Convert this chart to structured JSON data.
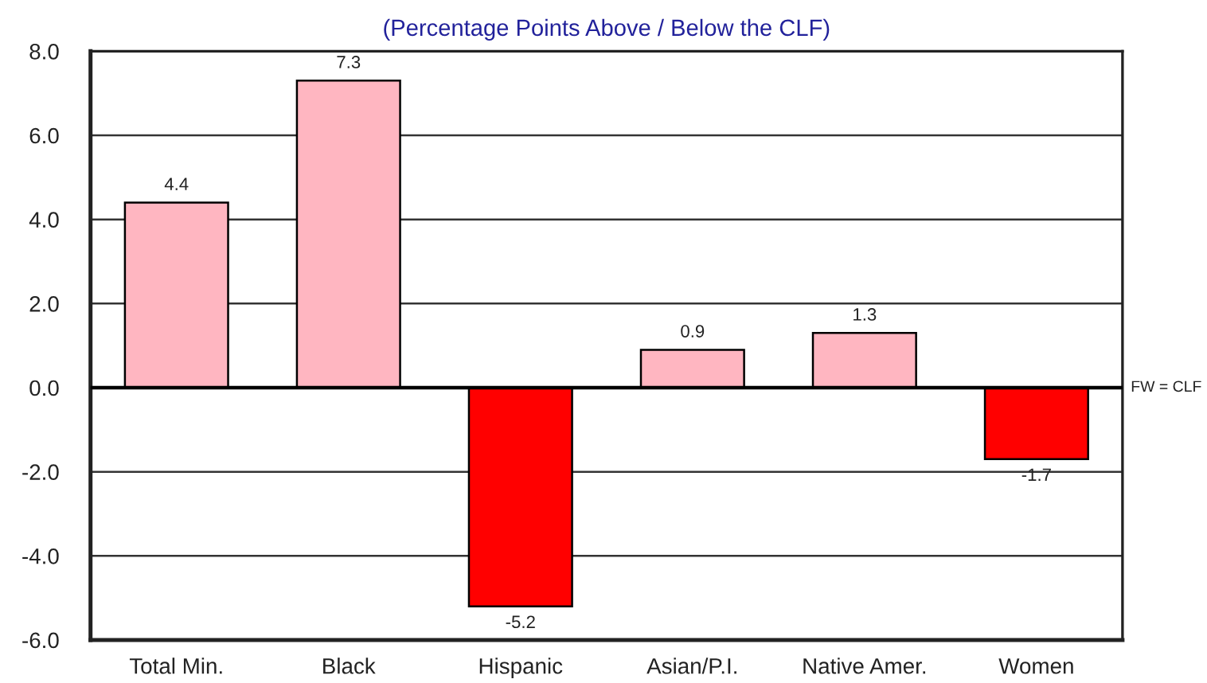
{
  "chart_data": {
    "type": "bar",
    "title": "(Percentage Points Above / Below the CLF)",
    "categories": [
      "Total Min.",
      "Black",
      "Hispanic",
      "Asian/P.I.",
      "Native Amer.",
      "Women"
    ],
    "values": [
      4.4,
      7.3,
      -5.2,
      0.9,
      1.3,
      -1.7
    ],
    "colors": [
      "#ffb6c1",
      "#ffb6c1",
      "#ff0000",
      "#ffb6c1",
      "#ffb6c1",
      "#ff0000"
    ],
    "ylim": [
      -6,
      8
    ],
    "yticks": [
      {
        "value": -6,
        "label": "-6.0"
      },
      {
        "value": -4,
        "label": "-4.0"
      },
      {
        "value": -2,
        "label": "-2.0"
      },
      {
        "value": 0,
        "label": "0.0"
      },
      {
        "value": 2,
        "label": "2.0"
      },
      {
        "value": 4,
        "label": "4.0"
      },
      {
        "value": 6,
        "label": "6.0"
      },
      {
        "value": 8,
        "label": "8.0"
      }
    ],
    "grid": "y",
    "data_labels": true,
    "ref_lines": [
      {
        "axis": "y",
        "value": 0,
        "label": "FW = CLF",
        "color": "#000000"
      }
    ]
  }
}
